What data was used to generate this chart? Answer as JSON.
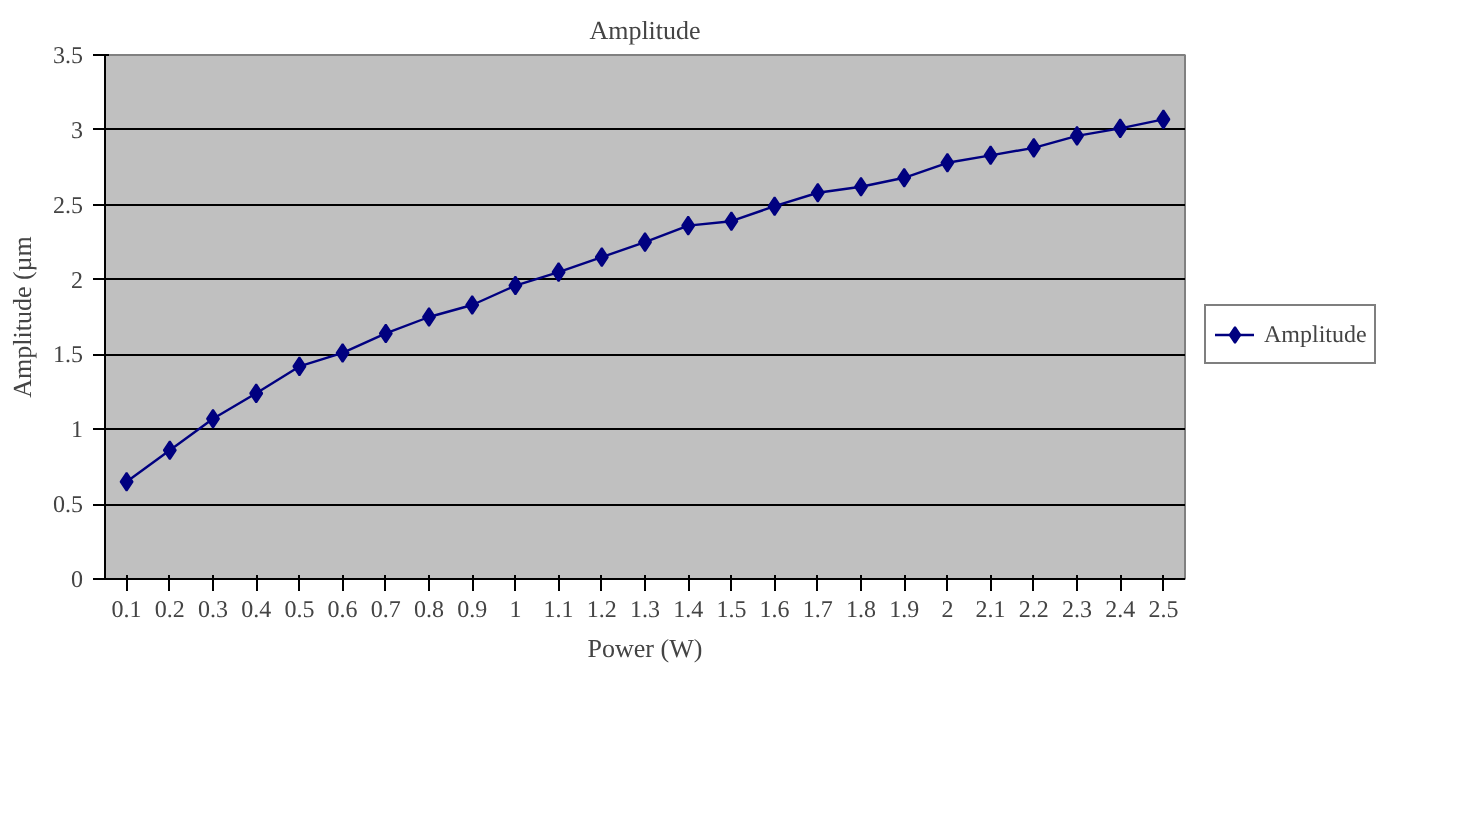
{
  "chart_data": {
    "type": "line",
    "title": "Amplitude",
    "xlabel": "Power (W)",
    "ylabel": "Amplitude (µm",
    "categories": [
      "0.1",
      "0.2",
      "0.3",
      "0.4",
      "0.5",
      "0.6",
      "0.7",
      "0.8",
      "0.9",
      "1",
      "1.1",
      "1.2",
      "1.3",
      "1.4",
      "1.5",
      "1.6",
      "1.7",
      "1.8",
      "1.9",
      "2",
      "2.1",
      "2.2",
      "2.3",
      "2.4",
      "2.5"
    ],
    "series": [
      {
        "name": "Amplitude",
        "color": "#000080",
        "values": [
          0.65,
          0.86,
          1.07,
          1.24,
          1.42,
          1.51,
          1.64,
          1.75,
          1.83,
          1.96,
          2.05,
          2.15,
          2.25,
          2.36,
          2.39,
          2.49,
          2.58,
          2.62,
          2.68,
          2.78,
          2.83,
          2.88,
          2.96,
          3.01,
          3.07
        ]
      }
    ],
    "ylim": [
      0,
      3.5
    ],
    "yticks": [
      0,
      0.5,
      1,
      1.5,
      2,
      2.5,
      3,
      3.5
    ],
    "grid": "y",
    "legend": "right",
    "marker": "diamond",
    "line_style": "solid"
  }
}
